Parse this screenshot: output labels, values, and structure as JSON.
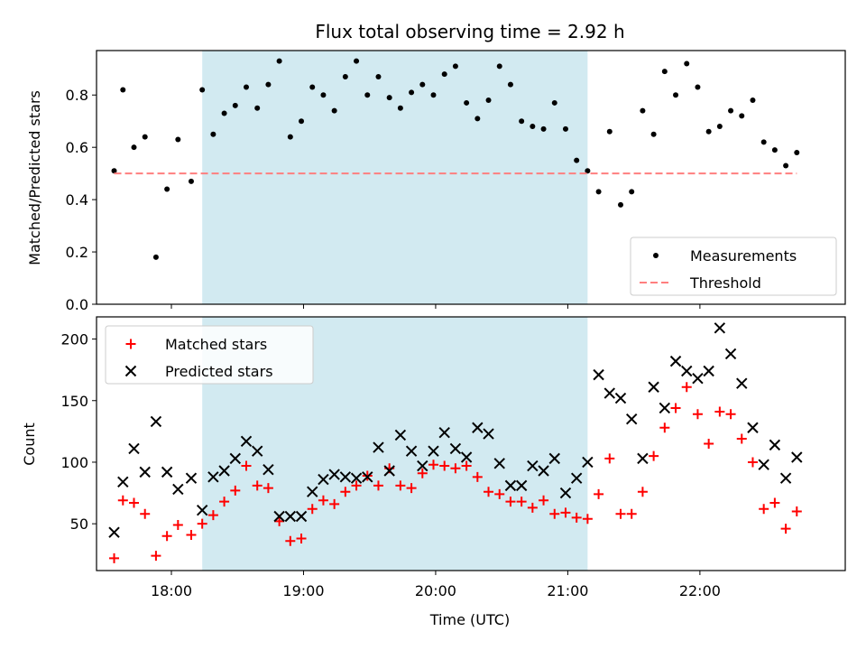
{
  "figure": {
    "title": "Flux total observing time = 2.92 h"
  },
  "colors": {
    "band": "#add8e6",
    "threshold": "#ff7f7f",
    "matched": "#ff0000",
    "predicted": "#000000",
    "measurement": "#000000"
  },
  "chart_data": [
    {
      "type": "scatter",
      "ylabel": "Matched/Predicted stars",
      "xlim": [
        "17:26",
        "23:06"
      ],
      "ylim": [
        0,
        0.97
      ],
      "yticks": [
        0.0,
        0.2,
        0.4,
        0.6,
        0.8
      ],
      "ytick_labels": [
        "0.0",
        "0.2",
        "0.4",
        "0.6",
        "0.8"
      ],
      "highlight_span": [
        "18:14",
        "21:09"
      ],
      "legend": {
        "placement": "lower-right",
        "entries": [
          "Measurements",
          "Threshold"
        ]
      },
      "series": [
        {
          "name": "Measurements",
          "marker": "dot",
          "x": [
            "17:34",
            "17:38",
            "17:43",
            "17:48",
            "17:53",
            "17:58",
            "18:03",
            "18:09",
            "18:14",
            "18:19",
            "18:24",
            "18:29",
            "18:34",
            "18:39",
            "18:44",
            "18:49",
            "18:54",
            "18:59",
            "19:04",
            "19:09",
            "19:14",
            "19:19",
            "19:24",
            "19:29",
            "19:34",
            "19:39",
            "19:44",
            "19:49",
            "19:54",
            "19:59",
            "20:04",
            "20:09",
            "20:14",
            "20:19",
            "20:24",
            "20:29",
            "20:34",
            "20:39",
            "20:44",
            "20:49",
            "20:54",
            "20:59",
            "21:04",
            "21:09",
            "21:14",
            "21:19",
            "21:24",
            "21:29",
            "21:34",
            "21:39",
            "21:44",
            "21:49",
            "21:54",
            "21:59",
            "22:04",
            "22:09",
            "22:14",
            "22:19",
            "22:24",
            "22:29",
            "22:34",
            "22:39",
            "22:44"
          ],
          "y": [
            0.51,
            0.82,
            0.6,
            0.64,
            0.18,
            0.44,
            0.63,
            0.47,
            0.82,
            0.65,
            0.73,
            0.76,
            0.83,
            0.75,
            0.84,
            0.93,
            0.64,
            0.7,
            0.83,
            0.8,
            0.74,
            0.87,
            0.93,
            0.8,
            0.87,
            0.79,
            0.75,
            0.81,
            0.84,
            0.8,
            0.88,
            0.91,
            0.77,
            0.71,
            0.78,
            0.91,
            0.84,
            0.7,
            0.68,
            0.67,
            0.77,
            0.67,
            0.55,
            0.51,
            0.43,
            0.66,
            0.38,
            0.43,
            0.74,
            0.65,
            0.89,
            0.8,
            0.92,
            0.83,
            0.66,
            0.68,
            0.74,
            0.72,
            0.78,
            0.62,
            0.59,
            0.53,
            0.58
          ]
        },
        {
          "name": "Threshold",
          "line": "dashed",
          "x": [
            "17:34",
            "22:44"
          ],
          "y": [
            0.5,
            0.5
          ]
        }
      ]
    },
    {
      "type": "scatter",
      "xlabel": "Time (UTC)",
      "ylabel": "Count",
      "xlim": [
        "17:26",
        "23:06"
      ],
      "ylim": [
        12,
        218
      ],
      "yticks": [
        50,
        100,
        150,
        200
      ],
      "xticks": [
        "18:00",
        "19:00",
        "20:00",
        "21:00",
        "22:00"
      ],
      "highlight_span": [
        "18:14",
        "21:09"
      ],
      "legend": {
        "placement": "upper-left",
        "entries": [
          "Matched stars",
          "Predicted stars"
        ]
      },
      "series": [
        {
          "name": "Matched stars",
          "marker": "plus",
          "x": [
            "17:34",
            "17:38",
            "17:43",
            "17:48",
            "17:53",
            "17:58",
            "18:03",
            "18:09",
            "18:14",
            "18:19",
            "18:24",
            "18:29",
            "18:34",
            "18:39",
            "18:44",
            "18:49",
            "18:54",
            "18:59",
            "19:04",
            "19:09",
            "19:14",
            "19:19",
            "19:24",
            "19:29",
            "19:34",
            "19:39",
            "19:44",
            "19:49",
            "19:54",
            "19:59",
            "20:04",
            "20:09",
            "20:14",
            "20:19",
            "20:24",
            "20:29",
            "20:34",
            "20:39",
            "20:44",
            "20:49",
            "20:54",
            "20:59",
            "21:04",
            "21:09",
            "21:14",
            "21:19",
            "21:24",
            "21:29",
            "21:34",
            "21:39",
            "21:44",
            "21:49",
            "21:54",
            "21:59",
            "22:04",
            "22:09",
            "22:14",
            "22:19",
            "22:24",
            "22:29",
            "22:34",
            "22:39",
            "22:44"
          ],
          "y": [
            22,
            69,
            67,
            58,
            24,
            40,
            49,
            41,
            50,
            57,
            68,
            77,
            97,
            81,
            79,
            52,
            36,
            38,
            62,
            69,
            66,
            76,
            81,
            89,
            81,
            95,
            81,
            79,
            91,
            98,
            97,
            95,
            97,
            88,
            76,
            74,
            68,
            68,
            63,
            69,
            58,
            59,
            55,
            54,
            74,
            103,
            58,
            58,
            76,
            105,
            128,
            144,
            161,
            139,
            115,
            141,
            139,
            119,
            100,
            62,
            67,
            46,
            60
          ]
        },
        {
          "name": "Predicted stars",
          "marker": "x",
          "x": [
            "17:34",
            "17:38",
            "17:43",
            "17:48",
            "17:53",
            "17:58",
            "18:03",
            "18:09",
            "18:14",
            "18:19",
            "18:24",
            "18:29",
            "18:34",
            "18:39",
            "18:44",
            "18:49",
            "18:54",
            "18:59",
            "19:04",
            "19:09",
            "19:14",
            "19:19",
            "19:24",
            "19:29",
            "19:34",
            "19:39",
            "19:44",
            "19:49",
            "19:54",
            "19:59",
            "20:04",
            "20:09",
            "20:14",
            "20:19",
            "20:24",
            "20:29",
            "20:34",
            "20:39",
            "20:44",
            "20:49",
            "20:54",
            "20:59",
            "21:04",
            "21:09",
            "21:14",
            "21:19",
            "21:24",
            "21:29",
            "21:34",
            "21:39",
            "21:44",
            "21:49",
            "21:54",
            "21:59",
            "22:04",
            "22:09",
            "22:14",
            "22:19",
            "22:24",
            "22:29",
            "22:34",
            "22:39",
            "22:44"
          ],
          "y": [
            43,
            84,
            111,
            92,
            133,
            92,
            78,
            87,
            61,
            88,
            93,
            103,
            117,
            109,
            94,
            56,
            56,
            56,
            76,
            86,
            90,
            88,
            87,
            88,
            112,
            93,
            122,
            109,
            97,
            109,
            124,
            111,
            104,
            128,
            123,
            99,
            81,
            81,
            97,
            93,
            103,
            75,
            87,
            100,
            171,
            156,
            152,
            135,
            103,
            161,
            144,
            182,
            174,
            168,
            174,
            209,
            188,
            164,
            128,
            98,
            114,
            87,
            104
          ]
        }
      ]
    }
  ]
}
